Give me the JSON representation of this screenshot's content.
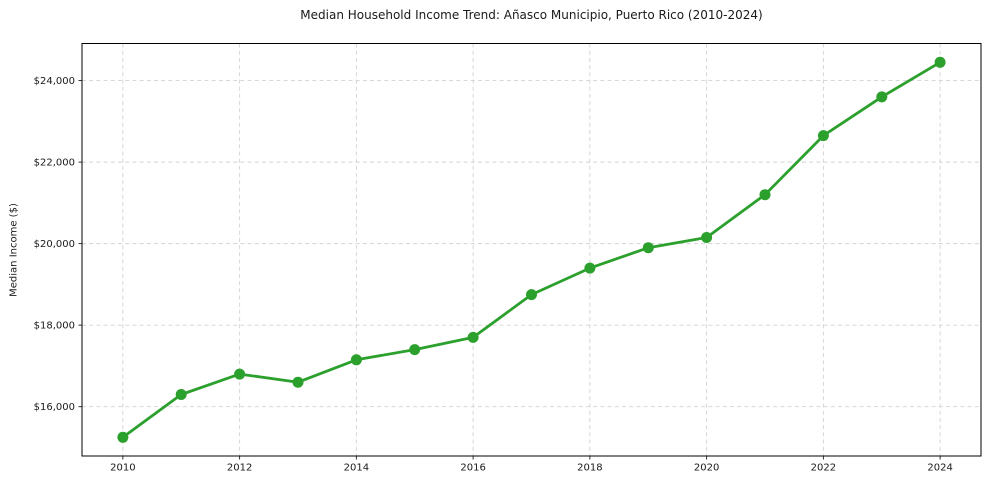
{
  "chart_data": {
    "type": "line",
    "title": "Median Household Income Trend: Añasco Municipio, Puerto Rico (2010-2024)",
    "xlabel": "",
    "ylabel": "Median Income ($)",
    "x": [
      2010,
      2011,
      2012,
      2013,
      2014,
      2015,
      2016,
      2017,
      2018,
      2019,
      2020,
      2021,
      2022,
      2023,
      2024
    ],
    "values": [
      15250,
      16300,
      16800,
      16600,
      17150,
      17400,
      17700,
      18750,
      19400,
      19900,
      20150,
      21200,
      22650,
      23600,
      24450
    ],
    "xlim": [
      2009.3,
      2024.7
    ],
    "ylim": [
      14790,
      24910
    ],
    "xticks": [
      {
        "value": 2010,
        "label": "2010"
      },
      {
        "value": 2012,
        "label": "2012"
      },
      {
        "value": 2014,
        "label": "2014"
      },
      {
        "value": 2016,
        "label": "2016"
      },
      {
        "value": 2018,
        "label": "2018"
      },
      {
        "value": 2020,
        "label": "2020"
      },
      {
        "value": 2022,
        "label": "2022"
      },
      {
        "value": 2024,
        "label": "2024"
      }
    ],
    "yticks": [
      {
        "value": 16000,
        "label": "$16,000"
      },
      {
        "value": 18000,
        "label": "$18,000"
      },
      {
        "value": 20000,
        "label": "$20,000"
      },
      {
        "value": 22000,
        "label": "$22,000"
      },
      {
        "value": 24000,
        "label": "$24,000"
      }
    ],
    "grid": true,
    "grid_style": "dashed",
    "legend_position": "none",
    "line_color": "#2ca02c",
    "marker": "circle",
    "grid_color": "#d2d2d2",
    "spine_color": "#000000",
    "tick_color": "#1a1a1a",
    "text_color": "#1a1a1a",
    "background_color": "#ffffff"
  }
}
